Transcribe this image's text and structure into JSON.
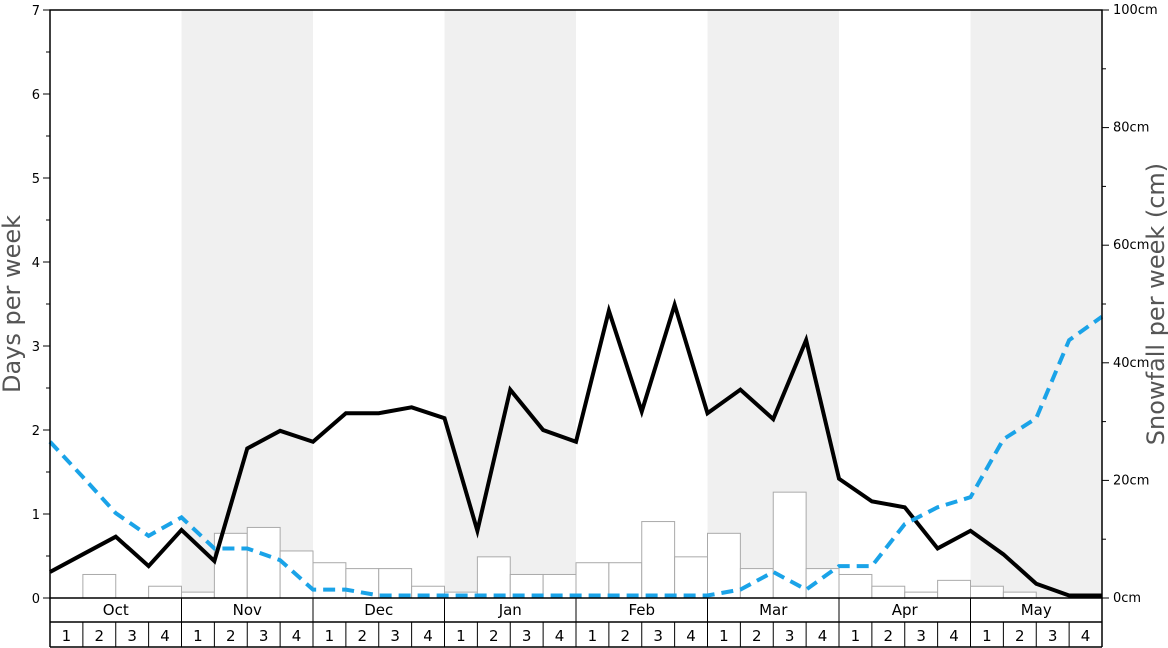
{
  "chart_data": {
    "type": "bar+line",
    "months": [
      "Oct",
      "Nov",
      "Dec",
      "Jan",
      "Feb",
      "Mar",
      "Apr",
      "May"
    ],
    "week_labels": [
      "1",
      "2",
      "3",
      "4"
    ],
    "y_left": {
      "label": "Days per week",
      "range": [
        0,
        7
      ],
      "ticks": [
        "0",
        "1",
        "2",
        "3",
        "4",
        "5",
        "6",
        "7"
      ]
    },
    "y_right": {
      "label": "Snowfall per week (cm)",
      "range": [
        0,
        100
      ],
      "ticks": [
        "0cm",
        "20cm",
        "40cm",
        "60cm",
        "80cm",
        "100cm"
      ]
    },
    "series": [
      {
        "type": "bar",
        "axis": "right",
        "color": "#ffffff",
        "stroke": "#aaaaaa",
        "values": [
          0,
          4,
          0,
          2,
          1,
          11,
          12,
          8,
          6,
          5,
          5,
          2,
          1,
          7,
          4,
          4,
          6,
          6,
          13,
          7,
          11,
          5,
          18,
          5,
          4,
          2,
          1,
          3,
          2,
          1,
          0,
          0
        ]
      },
      {
        "type": "line",
        "axis": "left",
        "style": "solid",
        "color": "#000000",
        "values": [
          0.31,
          0.52,
          0.73,
          0.38,
          0.81,
          0.44,
          1.78,
          1.99,
          1.86,
          2.2,
          2.2,
          2.27,
          2.14,
          0.8,
          2.48,
          2.0,
          1.86,
          3.42,
          2.22,
          3.49,
          2.2,
          2.48,
          2.13,
          3.07,
          1.42,
          1.15,
          1.08,
          0.59,
          0.8,
          0.52,
          0.17,
          0.03,
          0.03
        ]
      },
      {
        "type": "line",
        "axis": "left",
        "style": "dashed",
        "color": "#1aa3e8",
        "values": [
          1.86,
          1.44,
          1.01,
          0.74,
          0.96,
          0.59,
          0.59,
          0.45,
          0.1,
          0.1,
          0.03,
          0.03,
          0.03,
          0.03,
          0.03,
          0.03,
          0.03,
          0.03,
          0.03,
          0.03,
          0.03,
          0.1,
          0.31,
          0.1,
          0.38,
          0.38,
          0.88,
          1.08,
          1.2,
          1.89,
          2.14,
          3.07,
          3.35
        ]
      }
    ],
    "grid": false,
    "legend": "none",
    "shading": [
      "#ffffff",
      "#f0f0f0"
    ]
  }
}
